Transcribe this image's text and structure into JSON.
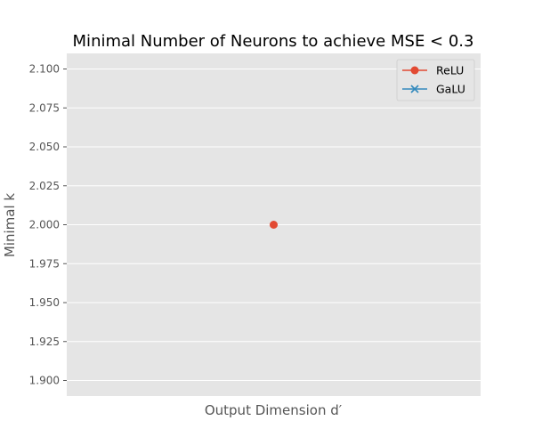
{
  "chart_data": {
    "type": "line",
    "title": "Minimal Number of Neurons to achieve MSE < 0.3",
    "xlabel": "Output Dimension d′",
    "ylabel": "Minimal k",
    "xlim": [
      -0.055,
      0.055
    ],
    "ylim": [
      1.89,
      2.11
    ],
    "yticks": [
      1.9,
      1.925,
      1.95,
      1.975,
      2.0,
      2.025,
      2.05,
      2.075,
      2.1
    ],
    "ytick_labels": [
      "1.900",
      "1.925",
      "1.950",
      "1.975",
      "2.000",
      "2.025",
      "2.050",
      "2.075",
      "2.100"
    ],
    "grid": true,
    "legend_position": "top-right",
    "series": [
      {
        "name": "ReLU",
        "marker": "circle",
        "color": "#E24A33",
        "x": [
          0
        ],
        "y": [
          2.0
        ]
      },
      {
        "name": "GaLU",
        "marker": "x",
        "color": "#348ABD",
        "x": [],
        "y": []
      }
    ],
    "plot_background": "#E5E5E5",
    "grid_color": "#FFFFFF"
  }
}
